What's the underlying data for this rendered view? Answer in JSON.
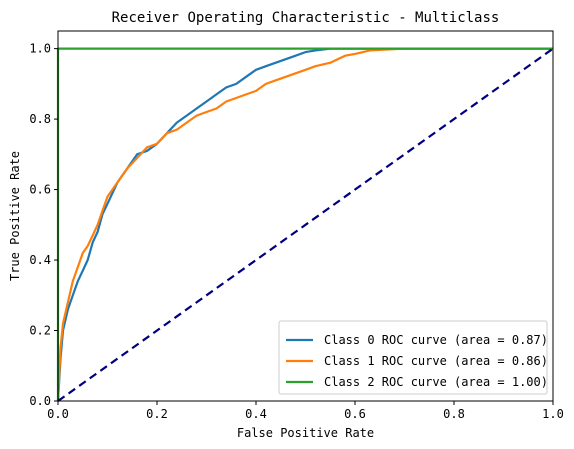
{
  "chart_data": {
    "type": "line",
    "title": "Receiver Operating Characteristic - Multiclass",
    "xlabel": "False Positive Rate",
    "ylabel": "True Positive Rate",
    "xlim": [
      0.0,
      1.0
    ],
    "ylim": [
      0.0,
      1.05
    ],
    "x_ticks": [
      "0.0",
      "0.2",
      "0.4",
      "0.6",
      "0.8",
      "1.0"
    ],
    "y_ticks": [
      "0.0",
      "0.2",
      "0.4",
      "0.6",
      "0.8",
      "1.0"
    ],
    "grid": false,
    "legend_position": "lower-right",
    "series": [
      {
        "name": "Class 0 ROC curve (area = 0.87)",
        "color": "#1f77b4",
        "x": [
          0.0,
          0.005,
          0.01,
          0.02,
          0.03,
          0.04,
          0.05,
          0.06,
          0.07,
          0.08,
          0.09,
          0.1,
          0.12,
          0.14,
          0.16,
          0.18,
          0.2,
          0.22,
          0.24,
          0.26,
          0.28,
          0.3,
          0.32,
          0.34,
          0.36,
          0.38,
          0.4,
          0.42,
          0.44,
          0.46,
          0.48,
          0.5,
          0.52,
          0.55,
          0.6,
          0.7,
          0.8,
          1.0
        ],
        "y": [
          0.0,
          0.12,
          0.2,
          0.26,
          0.3,
          0.34,
          0.37,
          0.4,
          0.45,
          0.48,
          0.53,
          0.56,
          0.62,
          0.66,
          0.7,
          0.71,
          0.73,
          0.76,
          0.79,
          0.81,
          0.83,
          0.85,
          0.87,
          0.89,
          0.9,
          0.92,
          0.94,
          0.95,
          0.96,
          0.97,
          0.98,
          0.99,
          0.995,
          1.0,
          1.0,
          1.0,
          1.0,
          1.0
        ]
      },
      {
        "name": "Class 1 ROC curve (area = 0.86)",
        "color": "#ff7f0e",
        "x": [
          0.0,
          0.005,
          0.01,
          0.02,
          0.03,
          0.04,
          0.05,
          0.06,
          0.07,
          0.08,
          0.09,
          0.1,
          0.12,
          0.14,
          0.16,
          0.18,
          0.2,
          0.22,
          0.24,
          0.26,
          0.28,
          0.3,
          0.32,
          0.34,
          0.36,
          0.38,
          0.4,
          0.42,
          0.44,
          0.46,
          0.48,
          0.5,
          0.52,
          0.55,
          0.58,
          0.6,
          0.63,
          0.7,
          1.0
        ],
        "y": [
          0.0,
          0.15,
          0.22,
          0.28,
          0.34,
          0.38,
          0.42,
          0.44,
          0.47,
          0.5,
          0.54,
          0.58,
          0.62,
          0.66,
          0.69,
          0.72,
          0.73,
          0.76,
          0.77,
          0.79,
          0.81,
          0.82,
          0.83,
          0.85,
          0.86,
          0.87,
          0.88,
          0.9,
          0.91,
          0.92,
          0.93,
          0.94,
          0.95,
          0.96,
          0.98,
          0.985,
          0.995,
          1.0,
          1.0
        ]
      },
      {
        "name": "Class 2 ROC curve (area = 1.00)",
        "color": "#2ca02c",
        "x": [
          0.0,
          0.0,
          1.0
        ],
        "y": [
          0.0,
          1.0,
          1.0
        ]
      }
    ],
    "reference_line": {
      "color": "#000080",
      "dashed": true,
      "x": [
        0.0,
        1.0
      ],
      "y": [
        0.0,
        1.0
      ]
    }
  }
}
